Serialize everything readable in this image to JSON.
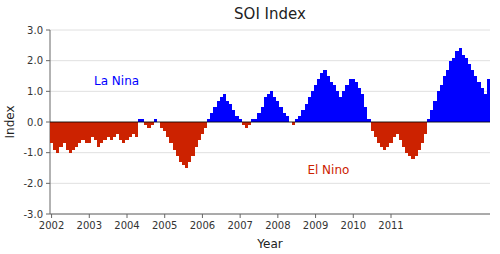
{
  "chart_data": {
    "type": "bar",
    "title": "SOI Index",
    "x_label": "Year",
    "y_label": "Index",
    "ylim": [
      -3.0,
      3.0
    ],
    "yticks": [
      {
        "value": -3.0,
        "label": "-3.0"
      },
      {
        "value": -2.0,
        "label": "-2.0"
      },
      {
        "value": -1.0,
        "label": "-1.0"
      },
      {
        "value": 0.0,
        "label": "0.0"
      },
      {
        "value": 1.0,
        "label": "1.0"
      },
      {
        "value": 2.0,
        "label": "2.0"
      },
      {
        "value": 3.0,
        "label": "3.0"
      }
    ],
    "grid": true,
    "categories": [
      "2002",
      null,
      null,
      null,
      null,
      null,
      null,
      null,
      null,
      null,
      null,
      null,
      "2003",
      null,
      null,
      null,
      null,
      null,
      null,
      null,
      null,
      null,
      null,
      null,
      "2004",
      null,
      null,
      null,
      null,
      null,
      null,
      null,
      null,
      null,
      null,
      null,
      "2005",
      null,
      null,
      null,
      null,
      null,
      null,
      null,
      null,
      null,
      null,
      null,
      "2006",
      null,
      null,
      null,
      null,
      null,
      null,
      null,
      null,
      null,
      null,
      null,
      "2007",
      null,
      null,
      null,
      null,
      null,
      null,
      null,
      null,
      null,
      null,
      null,
      "2008",
      null,
      null,
      null,
      null,
      null,
      null,
      null,
      null,
      null,
      null,
      null,
      "2009",
      null,
      null,
      null,
      null,
      null,
      null,
      null,
      null,
      null,
      null,
      null,
      "2010",
      null,
      null,
      null,
      null,
      null,
      null,
      null,
      null,
      null,
      null,
      null,
      "2011",
      null,
      null,
      null,
      null,
      null,
      null,
      null,
      null,
      null,
      null,
      null,
      null,
      null,
      null,
      null,
      null,
      null,
      null,
      null,
      null,
      null,
      null,
      null,
      null,
      null,
      null,
      null,
      null,
      null,
      null,
      null
    ],
    "values": [
      -0.7,
      -0.9,
      -1.0,
      -0.8,
      -0.7,
      -0.9,
      -1.0,
      -0.9,
      -0.8,
      -0.7,
      -0.6,
      -0.7,
      -0.7,
      -0.5,
      -0.6,
      -0.8,
      -0.7,
      -0.6,
      -0.5,
      -0.6,
      -0.5,
      -0.4,
      -0.6,
      -0.7,
      -0.6,
      -0.5,
      -0.4,
      -0.5,
      0.1,
      0.1,
      -0.1,
      -0.2,
      -0.1,
      0.1,
      0.0,
      -0.2,
      -0.3,
      -0.5,
      -0.7,
      -0.9,
      -1.1,
      -1.3,
      -1.4,
      -1.5,
      -1.3,
      -1.1,
      -0.8,
      -0.6,
      -0.4,
      -0.2,
      0.1,
      0.3,
      0.5,
      0.7,
      0.8,
      0.9,
      0.7,
      0.6,
      0.4,
      0.2,
      0.1,
      -0.1,
      -0.2,
      -0.1,
      0.1,
      0.1,
      0.3,
      0.5,
      0.8,
      0.9,
      1.0,
      0.8,
      0.7,
      0.5,
      0.3,
      0.2,
      0.0,
      -0.1,
      0.1,
      0.2,
      0.4,
      0.6,
      0.8,
      1.0,
      1.2,
      1.4,
      1.6,
      1.7,
      1.5,
      1.3,
      1.2,
      1.0,
      0.8,
      1.0,
      1.2,
      1.4,
      1.4,
      1.3,
      1.1,
      0.9,
      0.5,
      0.1,
      -0.3,
      -0.5,
      -0.7,
      -0.8,
      -0.9,
      -0.8,
      -0.7,
      -0.5,
      -0.4,
      -0.6,
      -0.8,
      -1.0,
      -1.1,
      -1.2,
      -1.1,
      -0.9,
      -0.7,
      -0.4,
      0.1,
      0.4,
      0.7,
      1.0,
      1.2,
      1.5,
      1.7,
      2.0,
      2.1,
      2.3,
      2.4,
      2.2,
      2.1,
      1.9,
      1.7,
      1.5,
      1.3,
      1.1,
      0.9,
      1.4
    ],
    "colors": [
      "#CC2200",
      "#CC2200",
      "#CC2200",
      "#CC2200",
      "#CC2200",
      "#CC2200",
      "#CC2200",
      "#CC2200",
      "#CC2200",
      "#CC2200",
      "#CC2200",
      "#CC2200",
      "#CC2200",
      "#CC2200",
      "#CC2200",
      "#CC2200",
      "#CC2200",
      "#CC2200",
      "#CC2200",
      "#CC2200",
      "#CC2200",
      "#CC2200",
      "#CC2200",
      "#CC2200",
      "#CC2200",
      "#CC2200",
      "#CC2200",
      "#CC2200",
      "#0000FF",
      "#0000FF",
      "#CC2200",
      "#CC2200",
      "#CC2200",
      "#0000FF",
      "#0000FF",
      "#CC2200",
      "#CC2200",
      "#CC2200",
      "#CC2200",
      "#CC2200",
      "#CC2200",
      "#CC2200",
      "#CC2200",
      "#CC2200",
      "#CC2200",
      "#CC2200",
      "#CC2200",
      "#CC2200",
      "#CC2200",
      "#CC2200",
      "#0000FF",
      "#0000FF",
      "#0000FF",
      "#0000FF",
      "#0000FF",
      "#0000FF",
      "#0000FF",
      "#0000FF",
      "#0000FF",
      "#0000FF",
      "#0000FF",
      "#CC2200",
      "#CC2200",
      "#CC2200",
      "#0000FF",
      "#0000FF",
      "#0000FF",
      "#0000FF",
      "#0000FF",
      "#0000FF",
      "#0000FF",
      "#0000FF",
      "#0000FF",
      "#0000FF",
      "#0000FF",
      "#0000FF",
      "#0000FF",
      "#CC2200",
      "#0000FF",
      "#0000FF",
      "#0000FF",
      "#0000FF",
      "#0000FF",
      "#0000FF",
      "#0000FF",
      "#0000FF",
      "#0000FF",
      "#0000FF",
      "#0000FF",
      "#0000FF",
      "#0000FF",
      "#0000FF",
      "#0000FF",
      "#0000FF",
      "#0000FF",
      "#0000FF",
      "#0000FF",
      "#0000FF",
      "#0000FF",
      "#0000FF",
      "#0000FF",
      "#0000FF",
      "#CC2200",
      "#CC2200",
      "#CC2200",
      "#CC2200",
      "#CC2200",
      "#CC2200",
      "#CC2200",
      "#CC2200",
      "#CC2200",
      "#CC2200",
      "#CC2200",
      "#CC2200",
      "#CC2200",
      "#CC2200",
      "#CC2200",
      "#CC2200",
      "#CC2200",
      "#CC2200",
      "#0000FF",
      "#0000FF",
      "#0000FF",
      "#0000FF",
      "#0000FF",
      "#0000FF",
      "#0000FF",
      "#0000FF",
      "#0000FF",
      "#0000FF",
      "#0000FF",
      "#0000FF",
      "#0000FF",
      "#0000FF",
      "#0000FF",
      "#0000FF",
      "#0000FF",
      "#0000FF",
      "#0000FF",
      "#0000FF"
    ],
    "annotations": [
      {
        "text": "La Nina",
        "color": "#0000FF"
      },
      {
        "text": "El Nino",
        "color": "#CC2200"
      }
    ]
  }
}
